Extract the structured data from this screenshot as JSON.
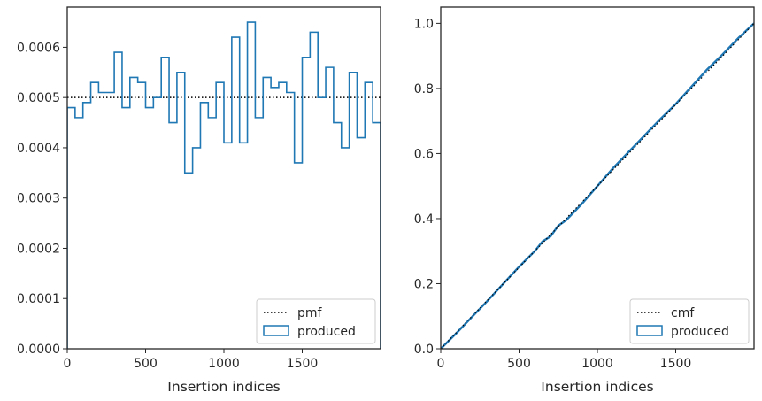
{
  "chart_data": [
    {
      "type": "histogram-step",
      "xlabel": "Insertion indices",
      "ylabel": "",
      "xlim": [
        0,
        2000
      ],
      "ylim": [
        0,
        0.00068
      ],
      "xticks": [
        0,
        500,
        1000,
        1500
      ],
      "xtick_labels": [
        "0",
        "500",
        "1000",
        "1500"
      ],
      "yticks": [
        0,
        0.0001,
        0.0002,
        0.0003,
        0.0004,
        0.0005,
        0.0006
      ],
      "ytick_labels": [
        "0.0000",
        "0.0001",
        "0.0002",
        "0.0003",
        "0.0004",
        "0.0005",
        "0.0006"
      ],
      "legend_position": "lower-right",
      "reference_line": {
        "name": "pmf",
        "y": 0.0005,
        "color": "#000000",
        "style": "dotted"
      },
      "series": [
        {
          "name": "produced",
          "color": "#1f77b4",
          "bin_width": 50,
          "bin_start": 0,
          "values": [
            0.00048,
            0.00046,
            0.00049,
            0.00053,
            0.00051,
            0.00051,
            0.00059,
            0.00048,
            0.00054,
            0.00053,
            0.00048,
            0.0005,
            0.00058,
            0.00045,
            0.00055,
            0.00035,
            0.0004,
            0.00049,
            0.00046,
            0.00053,
            0.00041,
            0.00062,
            0.00041,
            0.00065,
            0.00046,
            0.00054,
            0.00052,
            0.00053,
            0.00051,
            0.00037,
            0.00058,
            0.00063,
            0.0005,
            0.00056,
            0.00045,
            0.0004,
            0.00055,
            0.00042,
            0.00053,
            0.00045
          ]
        }
      ]
    },
    {
      "type": "line",
      "xlabel": "Insertion indices",
      "ylabel": "",
      "xlim": [
        0,
        2000
      ],
      "ylim": [
        0,
        1.05
      ],
      "xticks": [
        0,
        500,
        1000,
        1500
      ],
      "xtick_labels": [
        "0",
        "500",
        "1000",
        "1500"
      ],
      "yticks": [
        0,
        0.2,
        0.4,
        0.6,
        0.8,
        1.0
      ],
      "ytick_labels": [
        "0.0",
        "0.2",
        "0.4",
        "0.6",
        "0.8",
        "1.0"
      ],
      "legend_position": "lower-right",
      "reference_line": {
        "name": "cmf",
        "points": [
          [
            0,
            0
          ],
          [
            2000,
            1.0
          ]
        ],
        "color": "#000000",
        "style": "dotted"
      },
      "series": [
        {
          "name": "produced",
          "color": "#1f77b4",
          "x": [
            0,
            100,
            200,
            300,
            400,
            500,
            600,
            650,
            700,
            750,
            800,
            900,
            1000,
            1100,
            1200,
            1300,
            1400,
            1500,
            1600,
            1700,
            1800,
            1900,
            2000
          ],
          "y": [
            0,
            0.048,
            0.098,
            0.148,
            0.2,
            0.252,
            0.3,
            0.33,
            0.345,
            0.378,
            0.395,
            0.445,
            0.5,
            0.555,
            0.605,
            0.655,
            0.705,
            0.752,
            0.805,
            0.858,
            0.905,
            0.955,
            1.0
          ]
        }
      ]
    }
  ]
}
